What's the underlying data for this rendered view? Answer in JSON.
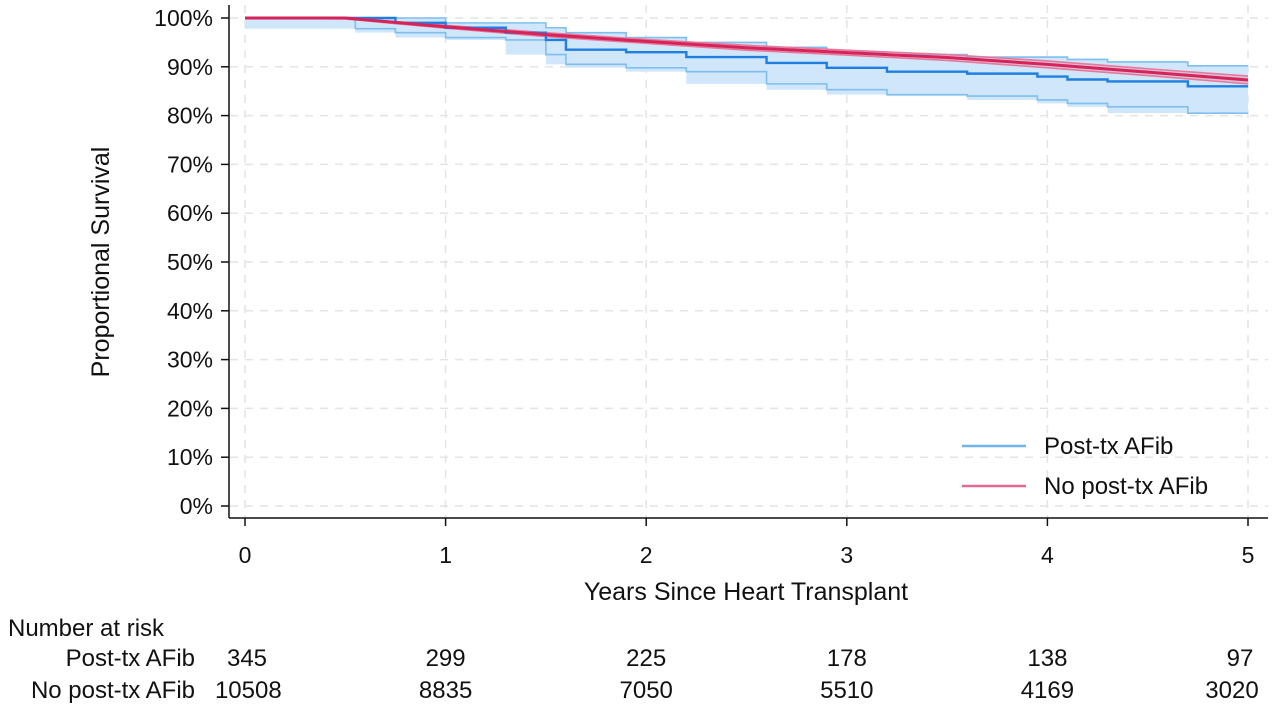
{
  "chart_data": {
    "type": "line",
    "title": "",
    "xlabel": "Years Since Heart Transplant",
    "ylabel": "Proportional Survival",
    "xlim": [
      0,
      5
    ],
    "ylim": [
      0,
      100
    ],
    "xticks": [
      "0",
      "1",
      "2",
      "3",
      "4",
      "5"
    ],
    "yticks": [
      "0%",
      "10%",
      "20%",
      "30%",
      "40%",
      "50%",
      "60%",
      "70%",
      "80%",
      "90%",
      "100%"
    ],
    "grid": true,
    "legend_position": "bottom-right",
    "series": [
      {
        "name": "Post-tx AFib",
        "color": "#1f7fe0",
        "ci_color": "#7fbff0",
        "ci_fill": "#cfe6fb",
        "step": true,
        "x": [
          0,
          0.55,
          0.75,
          1.0,
          1.3,
          1.5,
          1.6,
          1.9,
          2.2,
          2.6,
          2.9,
          3.2,
          3.6,
          3.95,
          4.1,
          4.3,
          4.7,
          5.0
        ],
        "y": [
          100,
          100,
          99.0,
          98.0,
          97.0,
          95.5,
          93.5,
          93.0,
          92.0,
          90.8,
          89.8,
          89.0,
          88.6,
          88.0,
          87.4,
          87.0,
          86.0,
          86.0
        ],
        "lower": [
          100,
          97.8,
          97.0,
          96.0,
          95.5,
          92.5,
          90.5,
          89.8,
          89.0,
          86.5,
          85.3,
          84.3,
          84.0,
          83.2,
          82.5,
          81.8,
          80.5,
          80.5
        ],
        "upper": [
          100,
          100,
          100,
          99.0,
          99.0,
          98.0,
          97.0,
          96.0,
          95.0,
          94.0,
          93.0,
          92.5,
          92.0,
          92.0,
          91.5,
          91.0,
          90.2,
          90.2
        ]
      },
      {
        "name": "No post-tx AFib",
        "color": "#d6245a",
        "ci_color": "#e8799a",
        "step": false,
        "x": [
          0,
          0.5,
          1.0,
          1.5,
          2.0,
          2.5,
          3.0,
          3.5,
          4.0,
          4.5,
          5.0
        ],
        "y": [
          100,
          100,
          98.2,
          96.6,
          95.2,
          93.9,
          92.9,
          91.9,
          90.5,
          88.9,
          87.3
        ],
        "lower": [
          100,
          99.8,
          97.9,
          96.2,
          94.8,
          93.4,
          92.4,
          91.3,
          89.8,
          88.2,
          86.5
        ],
        "upper": [
          100,
          100,
          98.5,
          97.0,
          95.6,
          94.4,
          93.4,
          92.5,
          91.2,
          89.6,
          88.1
        ]
      }
    ],
    "risk_table": {
      "title": "Number at risk",
      "rows": [
        {
          "label": "Post-tx AFib",
          "values": [
            "345",
            "299",
            "225",
            "178",
            "138",
            "97"
          ]
        },
        {
          "label": "No post-tx AFib",
          "values": [
            "10508",
            "8835",
            "7050",
            "5510",
            "4169",
            "3020"
          ]
        }
      ]
    }
  }
}
